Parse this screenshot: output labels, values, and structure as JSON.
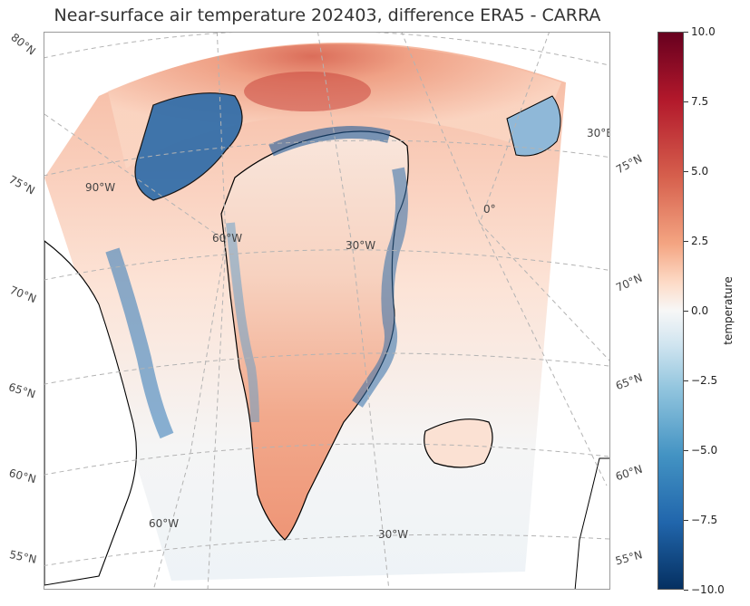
{
  "title": "Near-surface air temperature 202403, difference ERA5 - CARRA",
  "lat_labels": {
    "left": [
      "80°N",
      "75°N",
      "70°N",
      "65°N",
      "60°N",
      "55°N"
    ],
    "right": [
      "75°N",
      "70°N",
      "65°N",
      "60°N",
      "55°N"
    ]
  },
  "lon_labels": {
    "interior": [
      "90°W",
      "60°W",
      "30°W",
      "0°",
      "30°E"
    ],
    "bottom": [
      "60°W",
      "30°W"
    ]
  },
  "colorbar": {
    "label": "temperature",
    "ticks": [
      "10.0",
      "7.5",
      "5.0",
      "2.5",
      "0.0",
      "−2.5",
      "−5.0",
      "−7.5",
      "−10.0"
    ],
    "vmin": -10.0,
    "vmax": 10.0,
    "colormap": "RdBu_r",
    "colors": [
      "#67001f",
      "#b2182b",
      "#d6604d",
      "#f4a582",
      "#fddbc7",
      "#f7f7f7",
      "#d1e5f0",
      "#92c5de",
      "#4393c3",
      "#2166ac",
      "#053061"
    ]
  }
}
